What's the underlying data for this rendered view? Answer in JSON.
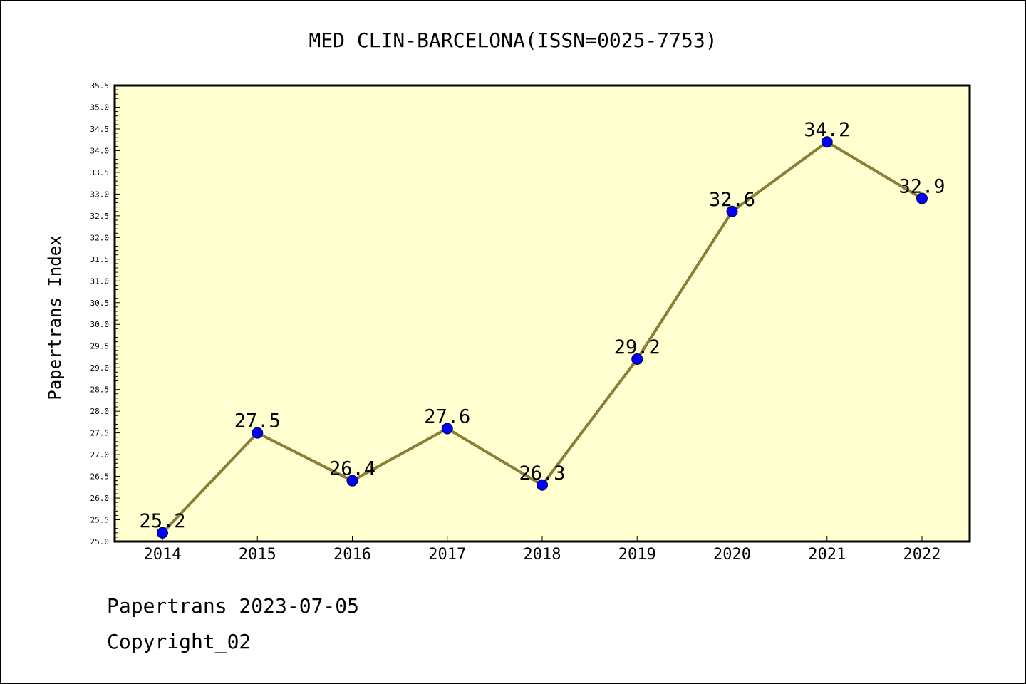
{
  "chart_data": {
    "type": "line",
    "title": "MED CLIN-BARCELONA(ISSN=0025-7753)",
    "xlabel": "",
    "ylabel": "Papertrans Index",
    "categories": [
      "2014",
      "2015",
      "2016",
      "2017",
      "2018",
      "2019",
      "2020",
      "2021",
      "2022"
    ],
    "series": [
      {
        "values": [
          25.2,
          27.5,
          26.4,
          27.6,
          26.3,
          29.2,
          32.6,
          34.2,
          32.9
        ],
        "labels": [
          "25.2",
          "27.5",
          "26.4",
          "27.6",
          "26.3",
          "29.2",
          "32.6",
          "34.2",
          "32.9"
        ]
      }
    ],
    "ylim": [
      25.0,
      35.5
    ],
    "yticks": [
      "25.0",
      "25.5",
      "26.0",
      "26.5",
      "27.0",
      "27.5",
      "28.0",
      "28.5",
      "29.0",
      "29.5",
      "30.0",
      "30.5",
      "31.0",
      "31.5",
      "32.0",
      "32.5",
      "33.0",
      "33.5",
      "34.0",
      "34.5",
      "35.0",
      "35.5"
    ],
    "grid": false,
    "colors": {
      "plot_background": "#ffffd0",
      "line": "#8b7d3a",
      "marker": "#0000ff"
    }
  },
  "footer": {
    "line1": "Papertrans 2023-07-05",
    "line2": "Copyright_02"
  }
}
